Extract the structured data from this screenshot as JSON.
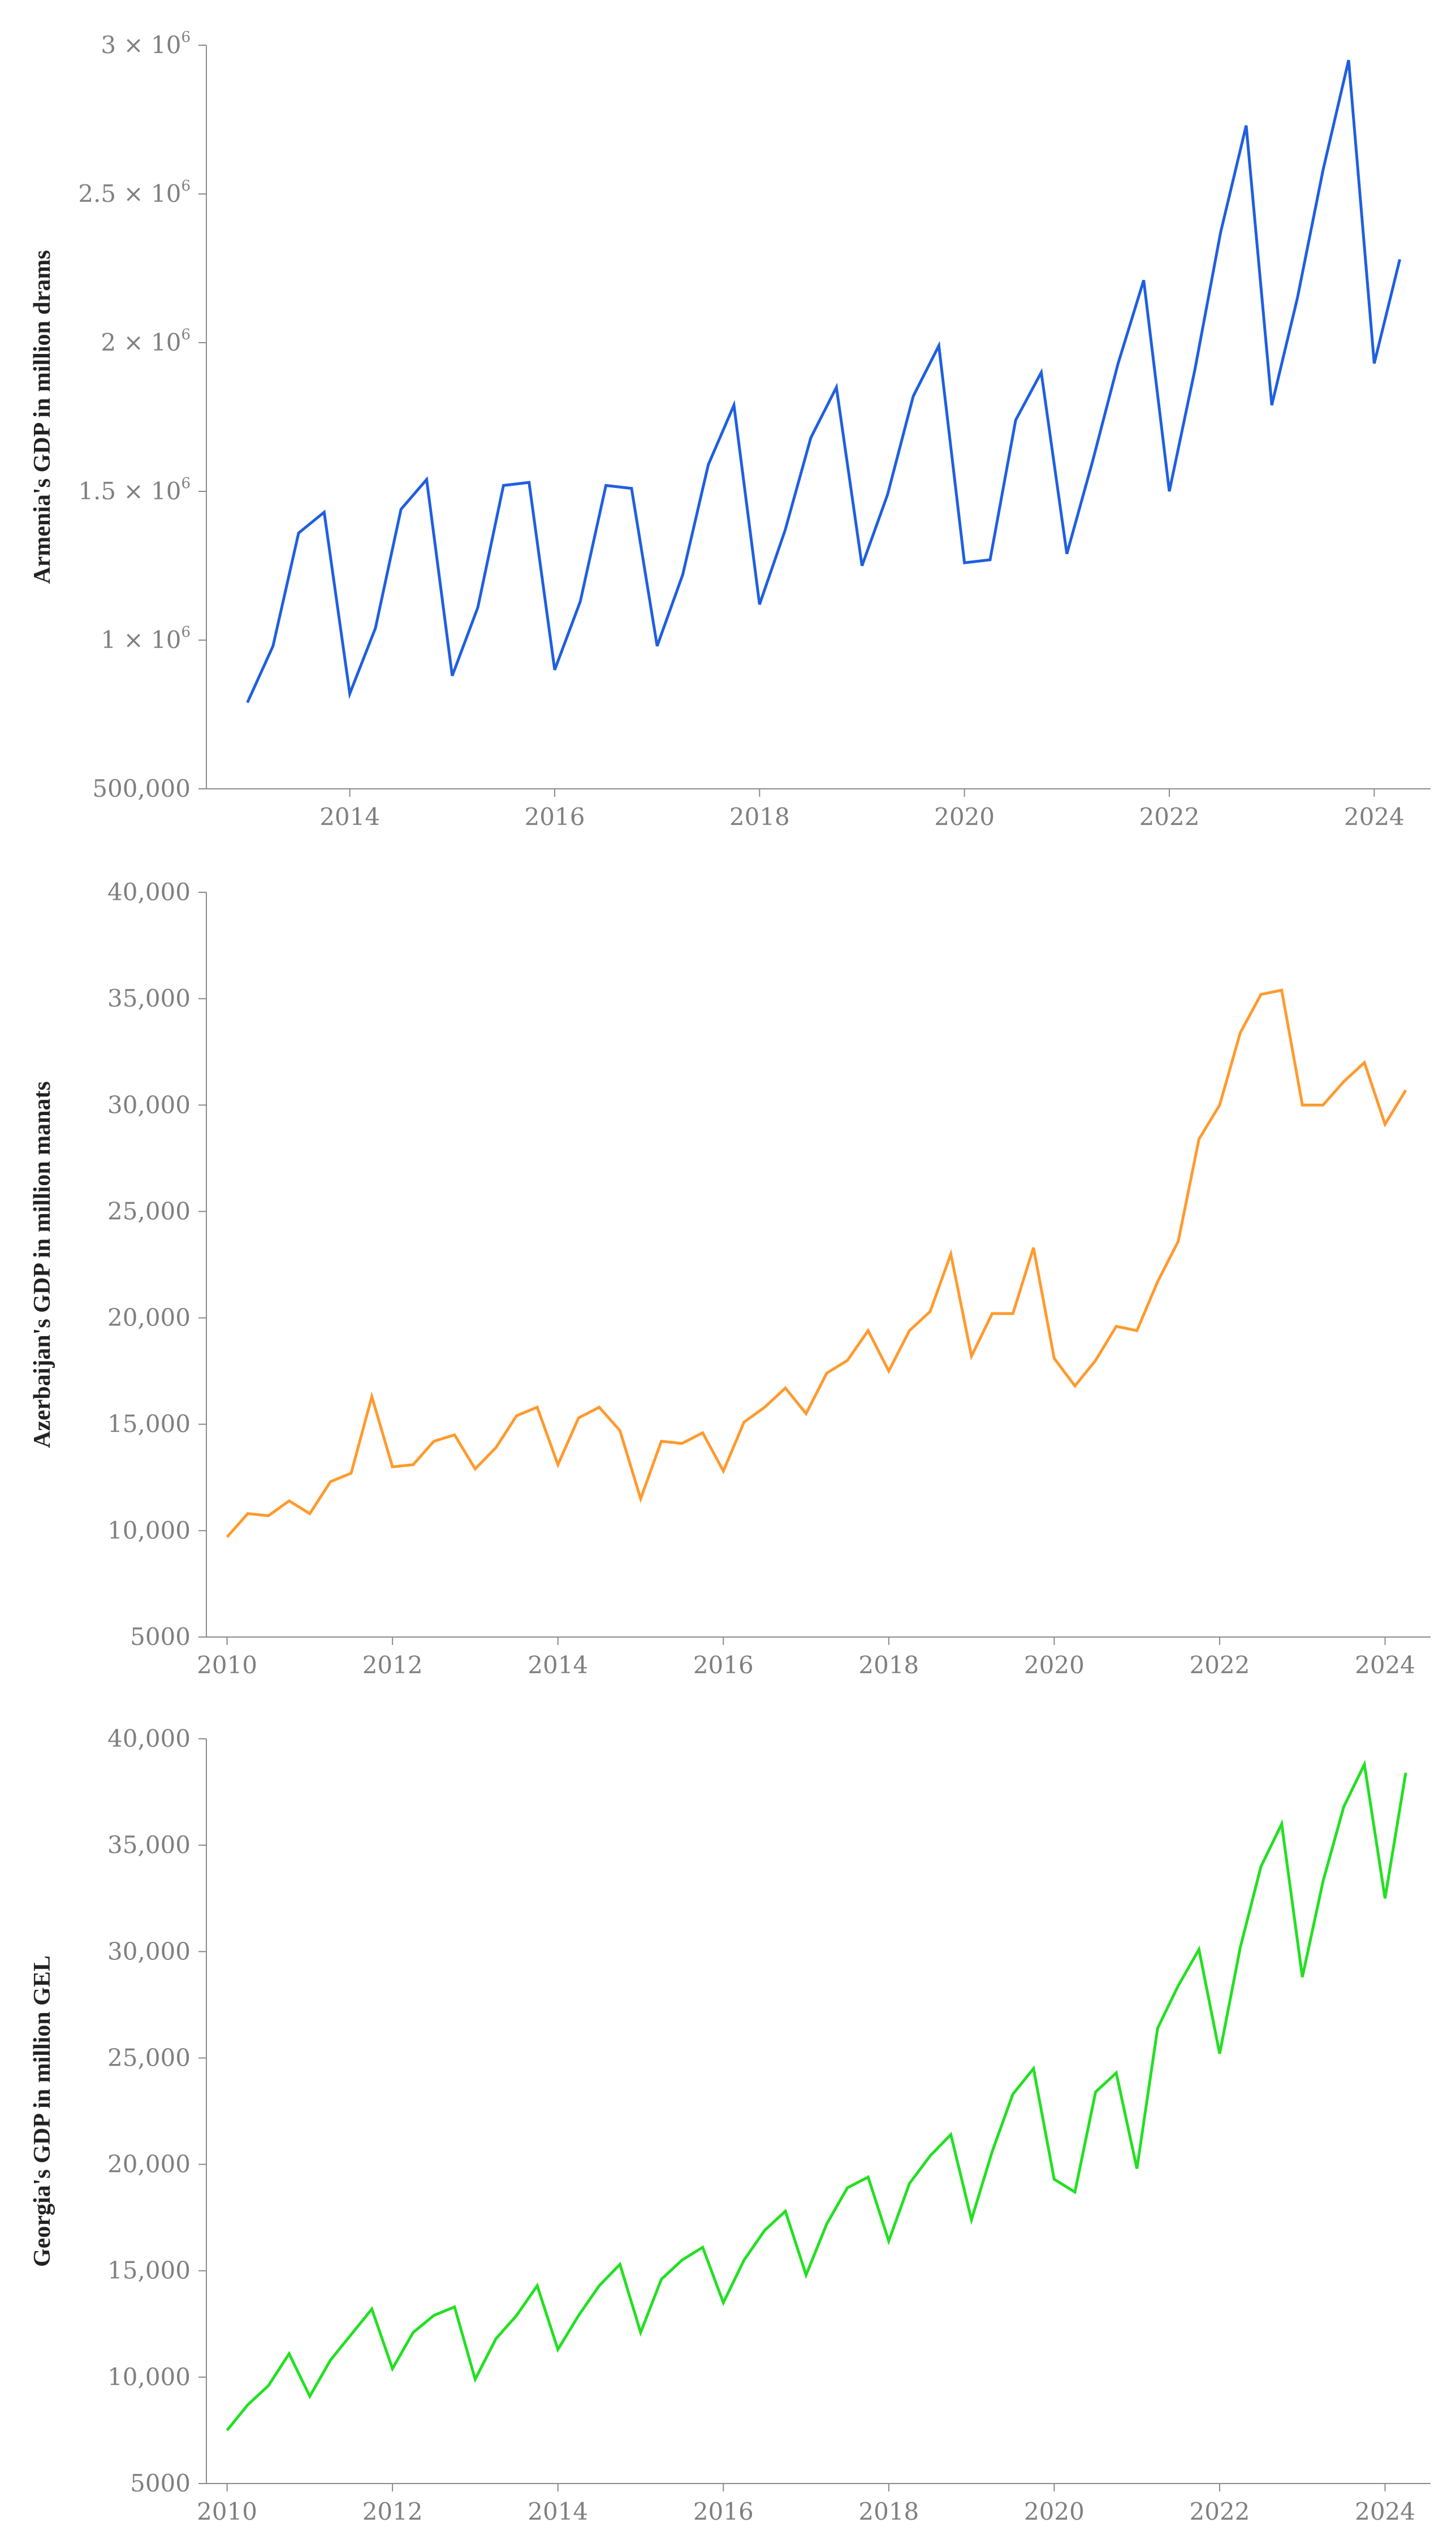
{
  "chart_data": [
    {
      "type": "line",
      "ylabel": "Armenia's GDP in million drams",
      "color": "#1f5fe0",
      "x_start": 2013.0,
      "x_step": 0.25,
      "xlim": [
        2012.6,
        2024.55
      ],
      "ylim": [
        500000,
        3000000
      ],
      "x_ticks": [
        2014,
        2016,
        2018,
        2020,
        2022,
        2024
      ],
      "y_ticks": [
        {
          "value": 500000,
          "mantissa": "500,000",
          "exponent": ""
        },
        {
          "value": 1000000,
          "mantissa": "1 × 10",
          "exponent": "6"
        },
        {
          "value": 1500000,
          "mantissa": "1.5 × 10",
          "exponent": "6"
        },
        {
          "value": 2000000,
          "mantissa": "2 × 10",
          "exponent": "6"
        },
        {
          "value": 2500000,
          "mantissa": "2.5 × 10",
          "exponent": "6"
        },
        {
          "value": 3000000,
          "mantissa": "3 × 10",
          "exponent": "6"
        }
      ],
      "values": [
        790000,
        980000,
        1360000,
        1430000,
        820000,
        1040000,
        1440000,
        1540000,
        880000,
        1110000,
        1520000,
        1530000,
        900000,
        1130000,
        1520000,
        1510000,
        980000,
        1220000,
        1590000,
        1790000,
        1120000,
        1370000,
        1680000,
        1850000,
        1250000,
        1490000,
        1820000,
        1990000,
        1260000,
        1270000,
        1740000,
        1900000,
        1290000,
        1600000,
        1930000,
        2210000,
        1500000,
        1910000,
        2370000,
        2730000,
        1790000,
        2150000,
        2580000,
        2950000,
        1930000,
        2280000
      ]
    },
    {
      "type": "line",
      "ylabel": "Azerbaijan's GDP in million manats",
      "color": "#ff9a2e",
      "x_start": 2010.0,
      "x_step": 0.25,
      "xlim": [
        2009.75,
        2024.55
      ],
      "ylim": [
        5000,
        40000
      ],
      "x_ticks": [
        2010,
        2012,
        2014,
        2016,
        2018,
        2020,
        2022,
        2024
      ],
      "y_ticks": [
        {
          "value": 5000,
          "mantissa": "5000",
          "exponent": ""
        },
        {
          "value": 10000,
          "mantissa": "10,000",
          "exponent": ""
        },
        {
          "value": 15000,
          "mantissa": "15,000",
          "exponent": ""
        },
        {
          "value": 20000,
          "mantissa": "20,000",
          "exponent": ""
        },
        {
          "value": 25000,
          "mantissa": "25,000",
          "exponent": ""
        },
        {
          "value": 30000,
          "mantissa": "30,000",
          "exponent": ""
        },
        {
          "value": 35000,
          "mantissa": "35,000",
          "exponent": ""
        },
        {
          "value": 40000,
          "mantissa": "40,000",
          "exponent": ""
        }
      ],
      "values": [
        9700,
        10800,
        10700,
        11400,
        10800,
        12300,
        12700,
        16300,
        13000,
        13100,
        14200,
        14500,
        12900,
        13900,
        15400,
        15800,
        13100,
        15300,
        15800,
        14700,
        11500,
        14200,
        14100,
        14600,
        12800,
        15100,
        15800,
        16700,
        15500,
        17400,
        18000,
        19400,
        17500,
        19400,
        20300,
        23000,
        18200,
        20200,
        20200,
        23300,
        18100,
        16800,
        18000,
        19600,
        19400,
        21700,
        23600,
        28400,
        30000,
        33400,
        35200,
        35400,
        30000,
        30000,
        31100,
        32000,
        29100,
        30700
      ]
    },
    {
      "type": "line",
      "ylabel": "Georgia's GDP in million GEL",
      "color": "#22e022",
      "x_start": 2010.0,
      "x_step": 0.25,
      "xlim": [
        2009.75,
        2024.55
      ],
      "ylim": [
        5000,
        40000
      ],
      "x_ticks": [
        2010,
        2012,
        2014,
        2016,
        2018,
        2020,
        2022,
        2024
      ],
      "y_ticks": [
        {
          "value": 5000,
          "mantissa": "5000",
          "exponent": ""
        },
        {
          "value": 10000,
          "mantissa": "10,000",
          "exponent": ""
        },
        {
          "value": 15000,
          "mantissa": "15,000",
          "exponent": ""
        },
        {
          "value": 20000,
          "mantissa": "20,000",
          "exponent": ""
        },
        {
          "value": 25000,
          "mantissa": "25,000",
          "exponent": ""
        },
        {
          "value": 30000,
          "mantissa": "30,000",
          "exponent": ""
        },
        {
          "value": 35000,
          "mantissa": "35,000",
          "exponent": ""
        },
        {
          "value": 40000,
          "mantissa": "40,000",
          "exponent": ""
        }
      ],
      "values": [
        7500,
        8700,
        9600,
        11100,
        9100,
        10800,
        12000,
        13200,
        10400,
        12100,
        12900,
        13300,
        9900,
        11800,
        12900,
        14300,
        11300,
        12900,
        14300,
        15300,
        12100,
        14600,
        15500,
        16100,
        13500,
        15500,
        16900,
        17800,
        14800,
        17200,
        18900,
        19400,
        16400,
        19100,
        20400,
        21400,
        17400,
        20600,
        23300,
        24500,
        19300,
        18700,
        23400,
        24300,
        19800,
        26400,
        28400,
        30100,
        25200,
        30200,
        34000,
        36000,
        28800,
        33300,
        36800,
        38800,
        32500,
        38400
      ]
    }
  ]
}
